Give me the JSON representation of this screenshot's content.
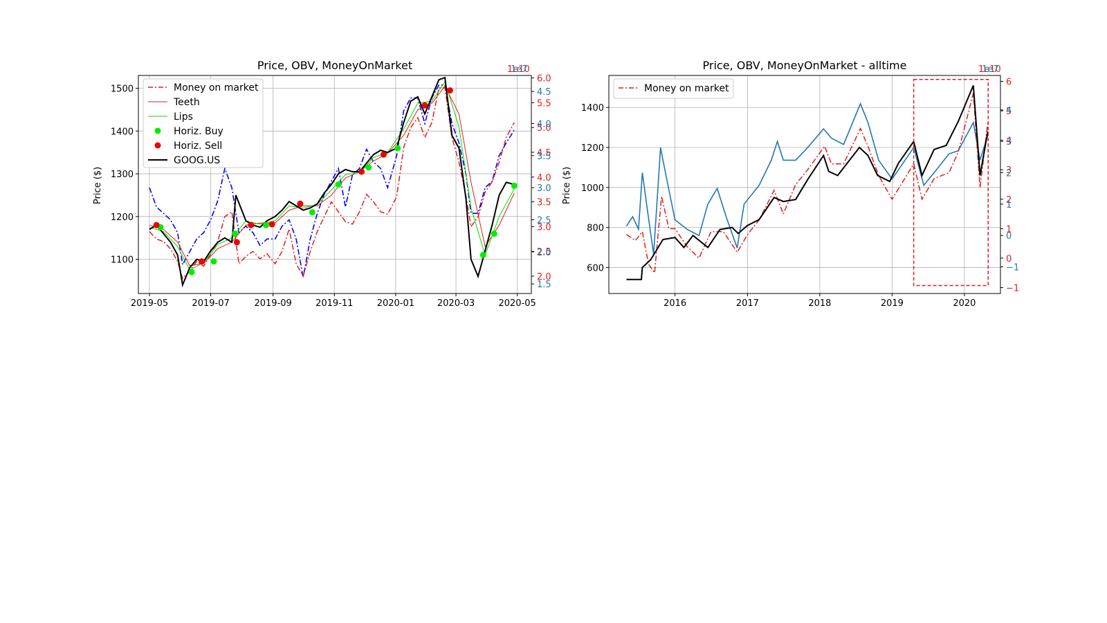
{
  "colors": {
    "price": "#000000",
    "obv": "#1f77b4",
    "money": "#e31a1c",
    "teeth": "#e31a1c",
    "lips": "#00dd00",
    "buy": "#00ee00",
    "sell": "#ee0000",
    "grid": "#b0b0b0",
    "rect": "#e31a1c",
    "left_obv_blue": "#0000ff"
  },
  "chart_data": [
    {
      "type": "line",
      "title": "Price, OBV, MoneyOnMarket",
      "ylabel": "Price ($)",
      "xlabel": "",
      "grid": true,
      "legend_placement": "top-left",
      "x_ticks": [
        "2019-05",
        "2019-07",
        "2019-09",
        "2019-11",
        "2020-01",
        "2020-03",
        "2020-05"
      ],
      "x_range": [
        "2019-04-20",
        "2020-05-15"
      ],
      "y_ticks": [
        1100,
        1200,
        1300,
        1400,
        1500
      ],
      "ylim": [
        1020,
        1530
      ],
      "right_axis_money": {
        "exponent_label": "1e10",
        "ticks": [
          "2.0",
          "2.5",
          "3.0",
          "3.5",
          "4.0",
          "4.5",
          "5.0",
          "5.5",
          "6.0"
        ],
        "ylim": [
          1.65,
          6.05
        ]
      },
      "right_axis_obv": {
        "exponent_label": "1e7",
        "ticks": [
          "1.5",
          "2.0",
          "2.5",
          "3.0",
          "3.5",
          "4.0",
          "4.5"
        ],
        "ylim": [
          1.35,
          4.75
        ]
      },
      "legend": [
        "Money on market",
        "Teeth",
        "Lips",
        "Horiz. Buy",
        "Horiz. Sell",
        "GOOG.US"
      ],
      "series": [
        {
          "name": "GOOG.US",
          "x": [
            "2019-05-01",
            "2019-05-08",
            "2019-05-15",
            "2019-05-22",
            "2019-05-29",
            "2019-06-03",
            "2019-06-10",
            "2019-06-17",
            "2019-06-24",
            "2019-07-01",
            "2019-07-08",
            "2019-07-15",
            "2019-07-22",
            "2019-07-26",
            "2019-08-05",
            "2019-08-12",
            "2019-08-19",
            "2019-08-26",
            "2019-09-03",
            "2019-09-10",
            "2019-09-17",
            "2019-09-24",
            "2019-10-01",
            "2019-10-08",
            "2019-10-15",
            "2019-10-22",
            "2019-10-29",
            "2019-11-05",
            "2019-11-12",
            "2019-11-19",
            "2019-11-26",
            "2019-12-03",
            "2019-12-10",
            "2019-12-17",
            "2019-12-24",
            "2020-01-02",
            "2020-01-09",
            "2020-01-16",
            "2020-01-23",
            "2020-01-30",
            "2020-02-06",
            "2020-02-13",
            "2020-02-19",
            "2020-02-26",
            "2020-03-04",
            "2020-03-11",
            "2020-03-16",
            "2020-03-23",
            "2020-03-30",
            "2020-04-06",
            "2020-04-13",
            "2020-04-20",
            "2020-04-28"
          ],
          "values": [
            1170,
            1180,
            1160,
            1140,
            1110,
            1040,
            1080,
            1100,
            1095,
            1120,
            1140,
            1150,
            1140,
            1250,
            1190,
            1180,
            1175,
            1190,
            1200,
            1215,
            1235,
            1225,
            1215,
            1220,
            1230,
            1255,
            1275,
            1300,
            1310,
            1305,
            1305,
            1325,
            1345,
            1355,
            1350,
            1360,
            1420,
            1470,
            1480,
            1440,
            1480,
            1520,
            1525,
            1390,
            1360,
            1240,
            1100,
            1060,
            1120,
            1180,
            1250,
            1280,
            1275
          ]
        },
        {
          "name": "Money on market",
          "x": [
            "2019-05-01",
            "2019-05-08",
            "2019-05-15",
            "2019-05-22",
            "2019-05-29",
            "2019-06-03",
            "2019-06-10",
            "2019-06-17",
            "2019-06-24",
            "2019-07-01",
            "2019-07-08",
            "2019-07-15",
            "2019-07-22",
            "2019-07-29",
            "2019-08-05",
            "2019-08-12",
            "2019-08-19",
            "2019-08-26",
            "2019-09-03",
            "2019-09-10",
            "2019-09-17",
            "2019-09-24",
            "2019-10-01",
            "2019-10-08",
            "2019-10-15",
            "2019-10-22",
            "2019-10-29",
            "2019-11-05",
            "2019-11-12",
            "2019-11-19",
            "2019-11-26",
            "2019-12-03",
            "2019-12-10",
            "2019-12-17",
            "2019-12-24",
            "2020-01-02",
            "2020-01-09",
            "2020-01-16",
            "2020-01-23",
            "2020-01-30",
            "2020-02-06",
            "2020-02-13",
            "2020-02-19",
            "2020-02-26",
            "2020-03-04",
            "2020-03-11",
            "2020-03-16",
            "2020-03-23",
            "2020-03-30",
            "2020-04-06",
            "2020-04-13",
            "2020-04-20",
            "2020-04-28"
          ],
          "values": [
            2.9,
            2.75,
            2.7,
            2.55,
            2.3,
            1.95,
            2.1,
            2.3,
            2.2,
            2.45,
            2.7,
            3.2,
            3.3,
            2.25,
            2.4,
            2.5,
            2.35,
            2.45,
            2.25,
            2.5,
            2.95,
            2.25,
            2.0,
            2.5,
            2.9,
            3.2,
            3.5,
            3.3,
            3.1,
            3.05,
            3.3,
            3.65,
            3.5,
            3.3,
            3.25,
            3.6,
            4.6,
            5.0,
            5.2,
            4.8,
            5.1,
            5.8,
            5.8,
            4.8,
            4.3,
            3.6,
            3.0,
            3.2,
            3.7,
            3.9,
            4.3,
            4.8,
            5.1
          ]
        },
        {
          "name": "OBV",
          "x": [
            "2019-05-01",
            "2019-05-08",
            "2019-05-15",
            "2019-05-22",
            "2019-05-29",
            "2019-06-03",
            "2019-06-10",
            "2019-06-17",
            "2019-06-24",
            "2019-07-01",
            "2019-07-08",
            "2019-07-15",
            "2019-07-22",
            "2019-07-29",
            "2019-08-05",
            "2019-08-12",
            "2019-08-19",
            "2019-08-26",
            "2019-09-03",
            "2019-09-10",
            "2019-09-17",
            "2019-09-24",
            "2019-10-01",
            "2019-10-08",
            "2019-10-15",
            "2019-10-22",
            "2019-10-29",
            "2019-11-05",
            "2019-11-12",
            "2019-11-19",
            "2019-11-26",
            "2019-12-03",
            "2019-12-10",
            "2019-12-17",
            "2019-12-24",
            "2020-01-02",
            "2020-01-09",
            "2020-01-16",
            "2020-01-23",
            "2020-01-30",
            "2020-02-06",
            "2020-02-13",
            "2020-02-19",
            "2020-02-26",
            "2020-03-04",
            "2020-03-11",
            "2020-03-16",
            "2020-03-23",
            "2020-03-30",
            "2020-04-06",
            "2020-04-13",
            "2020-04-20",
            "2020-04-28"
          ],
          "values": [
            3.0,
            2.7,
            2.6,
            2.5,
            2.3,
            1.8,
            2.0,
            2.2,
            2.3,
            2.5,
            2.8,
            3.3,
            3.0,
            2.3,
            2.4,
            2.3,
            2.1,
            2.2,
            2.2,
            2.4,
            2.5,
            2.2,
            1.6,
            2.2,
            2.6,
            2.9,
            3.1,
            3.3,
            2.7,
            3.2,
            3.3,
            3.6,
            3.4,
            3.3,
            3.0,
            3.5,
            4.2,
            4.4,
            4.4,
            4.0,
            4.4,
            4.6,
            4.6,
            4.0,
            3.7,
            3.2,
            2.6,
            2.6,
            3.0,
            3.1,
            3.5,
            3.7,
            3.9
          ]
        },
        {
          "name": "Teeth",
          "x": [
            "2019-05-01",
            "2019-05-15",
            "2019-05-29",
            "2019-06-10",
            "2019-06-24",
            "2019-07-08",
            "2019-07-22",
            "2019-08-05",
            "2019-08-19",
            "2019-09-03",
            "2019-09-17",
            "2019-10-01",
            "2019-10-15",
            "2019-10-29",
            "2019-11-12",
            "2019-11-26",
            "2019-12-10",
            "2019-12-24",
            "2020-01-09",
            "2020-01-23",
            "2020-02-06",
            "2020-02-19",
            "2020-03-04",
            "2020-03-16",
            "2020-03-30",
            "2020-04-13",
            "2020-04-28"
          ],
          "values": [
            1180,
            1170,
            1140,
            1085,
            1090,
            1125,
            1140,
            1180,
            1185,
            1185,
            1215,
            1225,
            1225,
            1250,
            1290,
            1305,
            1330,
            1348,
            1390,
            1450,
            1465,
            1505,
            1440,
            1280,
            1130,
            1180,
            1255
          ]
        },
        {
          "name": "Lips",
          "x": [
            "2019-05-01",
            "2019-05-15",
            "2019-05-29",
            "2019-06-10",
            "2019-06-24",
            "2019-07-08",
            "2019-07-22",
            "2019-08-05",
            "2019-08-19",
            "2019-09-03",
            "2019-09-17",
            "2019-10-01",
            "2019-10-15",
            "2019-10-29",
            "2019-11-12",
            "2019-11-26",
            "2019-12-10",
            "2019-12-24",
            "2020-01-09",
            "2020-01-23",
            "2020-02-06",
            "2020-02-19",
            "2020-03-04",
            "2020-03-16",
            "2020-03-30",
            "2020-04-13",
            "2020-04-28"
          ],
          "values": [
            1175,
            1165,
            1130,
            1075,
            1092,
            1135,
            1150,
            1190,
            1182,
            1190,
            1225,
            1220,
            1228,
            1262,
            1298,
            1303,
            1338,
            1350,
            1405,
            1465,
            1470,
            1515,
            1410,
            1220,
            1110,
            1200,
            1265
          ]
        },
        {
          "name": "Horiz. Buy",
          "x": [
            "2019-05-12",
            "2019-06-12",
            "2019-07-04",
            "2019-07-25",
            "2019-08-25",
            "2019-10-10",
            "2019-11-05",
            "2019-12-05",
            "2020-01-03",
            "2020-03-28",
            "2020-04-08",
            "2020-04-28"
          ],
          "values": [
            1175,
            1070,
            1095,
            1160,
            1180,
            1210,
            1275,
            1315,
            1360,
            1110,
            1160,
            1272
          ]
        },
        {
          "name": "Horiz. Sell",
          "x": [
            "2019-05-08",
            "2019-06-22",
            "2019-07-27",
            "2019-08-10",
            "2019-08-31",
            "2019-09-28",
            "2019-11-28",
            "2019-12-20",
            "2020-01-30",
            "2020-02-24"
          ],
          "values": [
            1180,
            1095,
            1140,
            1180,
            1182,
            1230,
            1305,
            1345,
            1460,
            1495
          ]
        }
      ]
    },
    {
      "type": "line",
      "title": "Price, OBV, MoneyOnMarket - alltime",
      "ylabel": "Price ($)",
      "xlabel": "",
      "grid": true,
      "legend_placement": "top-left",
      "x_ticks": [
        "2016",
        "2017",
        "2018",
        "2019",
        "2020"
      ],
      "x_range": [
        "2015-02-01",
        "2020-07-01"
      ],
      "y_ticks": [
        600,
        800,
        1000,
        1200,
        1400
      ],
      "ylim": [
        470,
        1560
      ],
      "right_axis_money": {
        "exponent_label": "1e10",
        "ticks": [
          "−1",
          "0",
          "1",
          "2",
          "3",
          "4",
          "5",
          "6"
        ],
        "ylim": [
          -1.2,
          6.2
        ]
      },
      "right_axis_obv": {
        "exponent_label": "1e7",
        "ticks": [
          "−1",
          "0",
          "1",
          "2",
          "3",
          "4"
        ],
        "ylim": [
          -1.85,
          5.1
        ]
      },
      "legend": [
        "Money on market"
      ],
      "highlight_rect": {
        "x": [
          "2019-04-20",
          "2020-04-30"
        ],
        "y": [
          510,
          1540
        ]
      },
      "series": [
        {
          "name": "GOOG.US",
          "x": [
            "2015-05-01",
            "2015-07-15",
            "2015-07-20",
            "2015-09-01",
            "2015-11-01",
            "2016-01-01",
            "2016-02-15",
            "2016-04-01",
            "2016-06-15",
            "2016-08-15",
            "2016-10-15",
            "2016-11-15",
            "2017-01-01",
            "2017-03-01",
            "2017-05-15",
            "2017-07-01",
            "2017-09-01",
            "2017-11-01",
            "2018-01-20",
            "2018-02-15",
            "2018-04-01",
            "2018-07-20",
            "2018-09-01",
            "2018-10-20",
            "2018-12-20",
            "2019-02-01",
            "2019-04-20",
            "2019-06-01",
            "2019-08-01",
            "2019-10-01",
            "2019-12-01",
            "2020-02-15",
            "2020-03-20",
            "2020-04-28"
          ],
          "values": [
            540,
            540,
            600,
            640,
            740,
            750,
            700,
            760,
            700,
            790,
            800,
            770,
            810,
            840,
            950,
            930,
            940,
            1040,
            1160,
            1080,
            1060,
            1200,
            1160,
            1060,
            1030,
            1120,
            1230,
            1060,
            1190,
            1210,
            1330,
            1510,
            1060,
            1280
          ]
        },
        {
          "name": "OBV",
          "x": [
            "2015-05-01",
            "2015-06-01",
            "2015-07-01",
            "2015-07-20",
            "2015-08-15",
            "2015-09-15",
            "2015-10-20",
            "2015-11-20",
            "2016-01-01",
            "2016-03-01",
            "2016-05-01",
            "2016-06-15",
            "2016-08-01",
            "2016-09-15",
            "2016-11-10",
            "2016-12-15",
            "2017-03-01",
            "2017-05-01",
            "2017-06-01",
            "2017-07-01",
            "2017-09-01",
            "2017-11-01",
            "2018-01-20",
            "2018-03-01",
            "2018-05-01",
            "2018-07-25",
            "2018-09-01",
            "2018-10-25",
            "2019-01-01",
            "2019-04-20",
            "2019-06-10",
            "2019-08-01",
            "2019-10-15",
            "2019-12-01",
            "2020-02-15",
            "2020-03-20",
            "2020-04-28"
          ],
          "values": [
            0.3,
            0.6,
            0.2,
            2.0,
            0.8,
            -0.6,
            2.8,
            1.8,
            0.5,
            0.2,
            0.0,
            1.0,
            1.5,
            0.6,
            -0.4,
            1.0,
            1.6,
            2.4,
            3.0,
            2.4,
            2.4,
            2.8,
            3.4,
            3.1,
            2.9,
            4.2,
            3.6,
            2.4,
            1.8,
            2.8,
            1.6,
            2.0,
            2.6,
            2.7,
            3.6,
            2.4,
            3.2
          ]
        },
        {
          "name": "Money on market",
          "x": [
            "2015-05-01",
            "2015-06-15",
            "2015-07-20",
            "2015-08-20",
            "2015-09-20",
            "2015-10-25",
            "2015-12-01",
            "2016-01-01",
            "2016-03-01",
            "2016-05-01",
            "2016-07-01",
            "2016-09-01",
            "2016-11-10",
            "2017-01-01",
            "2017-03-01",
            "2017-05-15",
            "2017-07-01",
            "2017-09-01",
            "2017-11-01",
            "2018-01-25",
            "2018-03-01",
            "2018-05-01",
            "2018-07-25",
            "2018-09-01",
            "2018-10-25",
            "2019-01-01",
            "2019-04-20",
            "2019-06-01",
            "2019-08-01",
            "2019-10-15",
            "2019-12-01",
            "2020-02-15",
            "2020-03-20",
            "2020-04-28"
          ],
          "values": [
            0.8,
            0.6,
            0.9,
            -0.2,
            -0.5,
            2.1,
            1.0,
            1.0,
            0.4,
            0.0,
            0.9,
            0.9,
            0.2,
            0.8,
            1.3,
            2.3,
            1.5,
            2.5,
            3.0,
            3.8,
            3.2,
            3.2,
            4.4,
            3.8,
            2.8,
            2.0,
            3.2,
            2.0,
            2.7,
            2.9,
            3.6,
            5.6,
            2.4,
            4.6
          ]
        }
      ]
    }
  ]
}
